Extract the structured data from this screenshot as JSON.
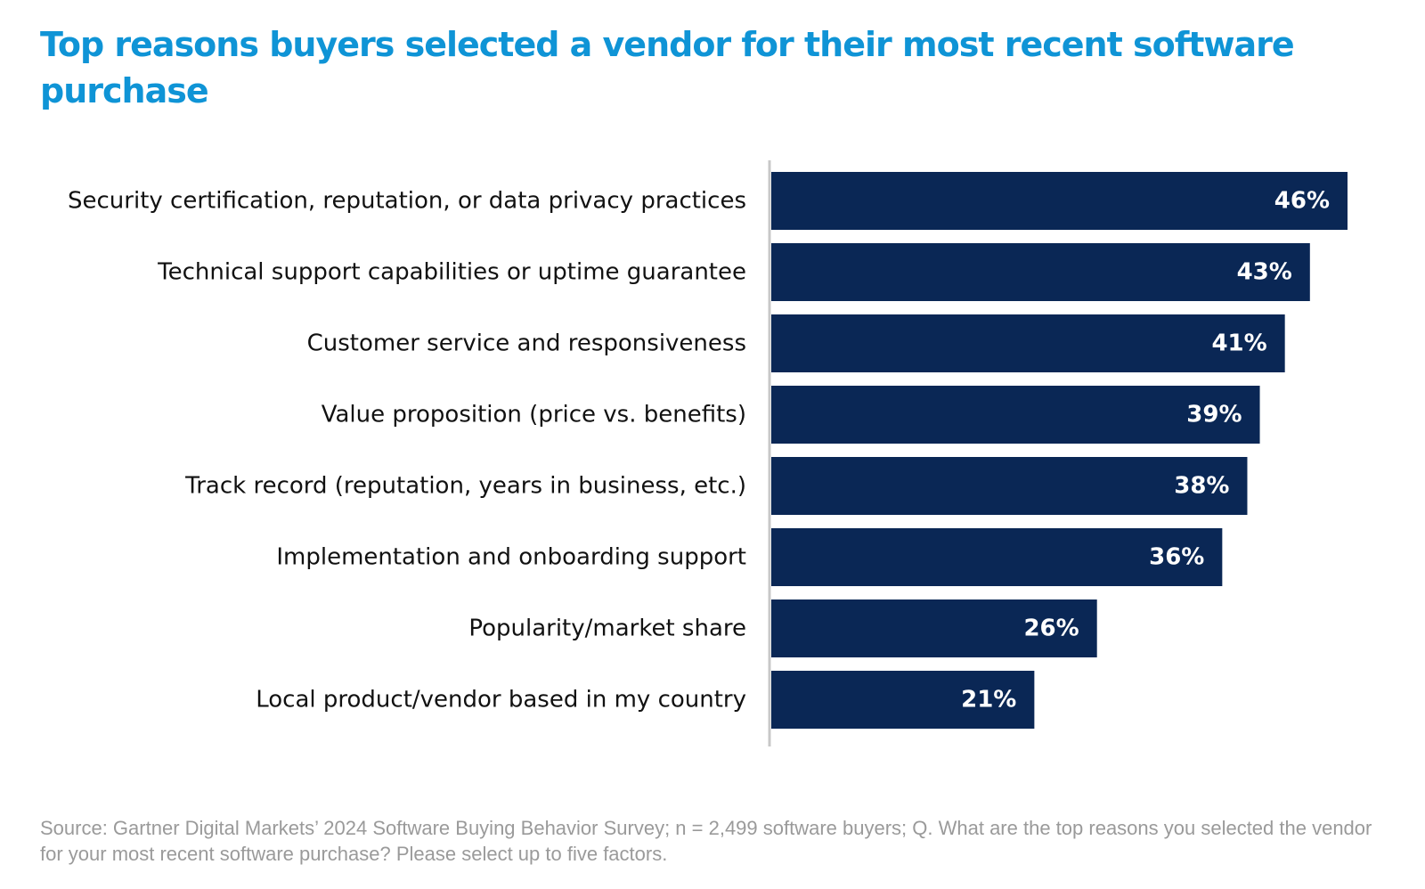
{
  "colors": {
    "title": "#0f94d6",
    "bar": "#0a2755",
    "bar_label": "#ffffff",
    "category_text": "#111111",
    "axis_line": "#c8c8c8",
    "source_text": "#9a9a9a"
  },
  "chart_data": {
    "type": "bar",
    "orientation": "horizontal",
    "title": "Top reasons buyers selected a vendor for their most recent software purchase",
    "categories": [
      "Security certification, reputation, or data privacy practices",
      "Technical support capabilities or uptime guarantee",
      "Customer service and responsiveness",
      "Value proposition (price vs. benefits)",
      "Track record (reputation, years in business, etc.)",
      "Implementation and onboarding support",
      "Popularity/market share",
      "Local product/vendor based in my country"
    ],
    "values": [
      46,
      43,
      41,
      39,
      38,
      36,
      26,
      21
    ],
    "value_labels": [
      "46%",
      "43%",
      "41%",
      "39%",
      "38%",
      "36%",
      "26%",
      "21%"
    ],
    "xlim": [
      0,
      46
    ],
    "grid": false,
    "legend": "none"
  },
  "source": "Source: Gartner Digital Markets’ 2024 Software Buying Behavior Survey; n = 2,499 software buyers; Q. What are the top reasons you selected the vendor for your most recent software purchase? Please select up to five factors."
}
